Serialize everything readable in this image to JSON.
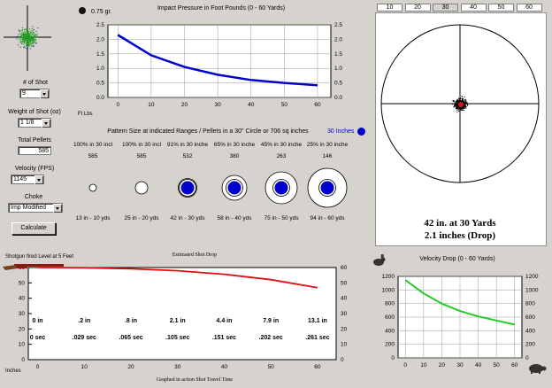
{
  "left_panel": {
    "num_shot_label": "# of Shot",
    "num_shot_value": "9",
    "weight_label": "Weight of Shot (oz)",
    "weight_value": "1 1/8",
    "total_pellets_label": "Total Pellets",
    "total_pellets_value": "585",
    "velocity_label": "Velocity (FPS)",
    "velocity_value": "1145",
    "choke_label": "Choke",
    "choke_value": "Imp Modified",
    "calculate_label": "Calculate"
  },
  "pellet_legend": "0.75 gr.",
  "impact_chart": {
    "title": "Impact Pressure in Foot Pounds  (0 - 60 Yards)",
    "unit_label": "Ft Lbs",
    "chart_data": {
      "type": "line",
      "title": "Impact Pressure in Foot Pounds  (0 - 60 Yards)",
      "x": [
        0,
        10,
        20,
        30,
        40,
        50,
        60
      ],
      "y": [
        2.15,
        1.45,
        1.05,
        0.78,
        0.6,
        0.5,
        0.42
      ],
      "xlim": [
        -3,
        64
      ],
      "ylim": [
        0,
        2.5
      ],
      "yticks": [
        "0.0",
        "0.5",
        "1.0",
        "1.5",
        "2.0",
        "2.5"
      ],
      "xticks": [
        "0",
        "10",
        "20",
        "30",
        "40",
        "50",
        "60"
      ],
      "color": "#0000cc",
      "grid": true
    }
  },
  "pattern": {
    "title": "Pattern Size at indicated Ranges / Pellets in a 30\" Circle or 706 sq inches",
    "legend_label": "30 Inches",
    "legend_color": "#0000cc",
    "columns": [
      {
        "pct": "100% in 30 incl",
        "count": "585",
        "range": "13 in - 10 yds",
        "inner": 0,
        "outer": 6
      },
      {
        "pct": "100% in 30 incl",
        "count": "585",
        "range": "25 in - 20 yds",
        "inner": 0,
        "outer": 12
      },
      {
        "pct": "91% in 30 inche",
        "count": "532",
        "range": "42 in - 30 yds",
        "inner": 15,
        "outer": 19
      },
      {
        "pct": "65% in 30 inche",
        "count": "380",
        "range": "58 in - 40 yds",
        "inner": 15,
        "outer": 26
      },
      {
        "pct": "45% in 30 inche",
        "count": "263",
        "range": "75 in - 50 yds",
        "inner": 15,
        "outer": 34
      },
      {
        "pct": "25% in 30 inche",
        "count": "146",
        "range": "94 in - 60 yds",
        "inner": 15,
        "outer": 42
      }
    ]
  },
  "target": {
    "range_buttons": [
      "10",
      "20",
      "30",
      "40",
      "50",
      "60"
    ],
    "active_range": "30",
    "result_line1": "42 in. at 30 Yards",
    "result_line2": "2.1 inches (Drop)"
  },
  "drop_chart": {
    "subtitle": "Shotgun fired Level at 5 Feet",
    "title": "Estimated Shot Drop",
    "drop_values": [
      "0 in",
      ".2 in",
      ".8 in",
      "2.1 in",
      "4.4 in",
      "7.9 in",
      "13.1 in"
    ],
    "time_values": [
      "0 sec",
      ".029 sec",
      ".065 sec",
      ".105 sec",
      ".151 sec",
      ".202 sec",
      ".261 sec"
    ],
    "unit_label": "Inches",
    "xlabel": "Graphed in action Shot Travel Time",
    "chart_data": {
      "type": "line",
      "title": "Estimated Shot Drop",
      "x": [
        0,
        10,
        20,
        30,
        40,
        50,
        60
      ],
      "y": [
        60,
        59.8,
        59.2,
        57.9,
        55.6,
        52.1,
        46.9
      ],
      "xlim": [
        -2,
        64
      ],
      "ylim": [
        0,
        60
      ],
      "yticks": [
        "0",
        "10",
        "20",
        "30",
        "40",
        "50",
        "60"
      ],
      "xticks": [
        "0",
        "10",
        "20",
        "30",
        "40",
        "50",
        "60"
      ],
      "color": "#e01010"
    }
  },
  "velocity_chart": {
    "title": "Velocity Drop (0 - 60 Yards)",
    "chart_data": {
      "type": "line",
      "title": "Velocity Drop (0 - 60 Yards)",
      "x": [
        0,
        10,
        20,
        30,
        40,
        50,
        60
      ],
      "y": [
        1145,
        950,
        800,
        690,
        610,
        550,
        490
      ],
      "xlim": [
        -4,
        64
      ],
      "ylim": [
        0,
        1200
      ],
      "yticks": [
        "0",
        "200",
        "400",
        "600",
        "800",
        "1000",
        "1200"
      ],
      "xticks": [
        "0",
        "10",
        "20",
        "30",
        "40",
        "50",
        "60"
      ],
      "color": "#22cc22"
    }
  }
}
